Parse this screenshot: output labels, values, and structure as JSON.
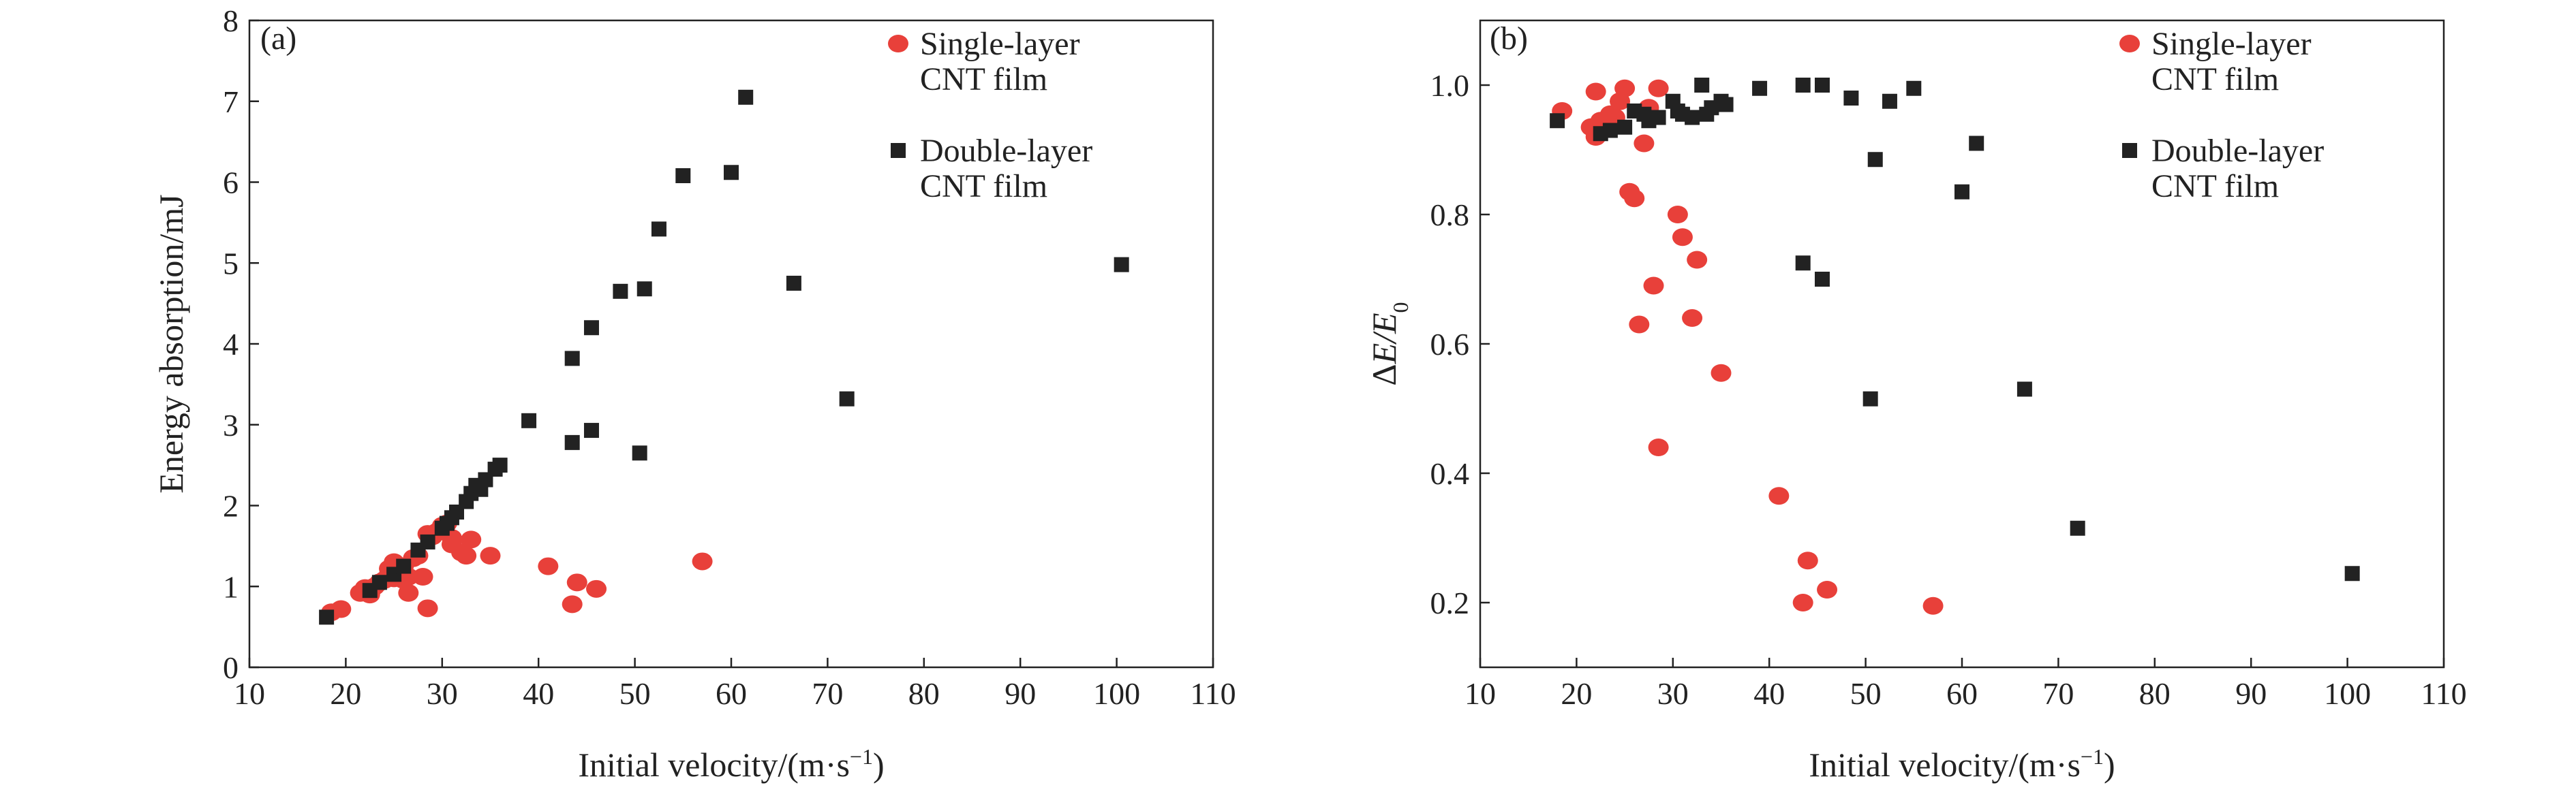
{
  "chart_data": [
    {
      "type": "scatter",
      "panel_label": "(a)",
      "xlabel": "Initial velocity/(m·s",
      "xlabel_sup": "−1",
      "xlabel_close": ")",
      "ylabel": "Energy absorption/mJ",
      "xlim": [
        10,
        110
      ],
      "ylim": [
        0,
        8
      ],
      "xticks": [
        10,
        20,
        30,
        40,
        50,
        60,
        70,
        80,
        90,
        100,
        110
      ],
      "yticks": [
        0,
        1,
        2,
        3,
        4,
        5,
        6,
        7,
        8
      ],
      "grid": false,
      "legend_position": "top-right",
      "series": [
        {
          "name": "Single-layer CNT film",
          "legend_lines": [
            "Single-layer",
            "CNT film"
          ],
          "marker": "circle",
          "color": "#e8403a",
          "points": [
            [
              18.5,
              0.68
            ],
            [
              19.5,
              0.72
            ],
            [
              21.5,
              0.92
            ],
            [
              22,
              0.98
            ],
            [
              22.5,
              0.9
            ],
            [
              23,
              1.0
            ],
            [
              23.5,
              1.05
            ],
            [
              24,
              1.08
            ],
            [
              24.5,
              1.15
            ],
            [
              24.5,
              1.22
            ],
            [
              25,
              1.1
            ],
            [
              25,
              1.3
            ],
            [
              25.5,
              1.18
            ],
            [
              26,
              1.25
            ],
            [
              26,
              1.08
            ],
            [
              26.5,
              1.12
            ],
            [
              26.5,
              0.92
            ],
            [
              27,
              1.35
            ],
            [
              27.5,
              1.38
            ],
            [
              28,
              1.12
            ],
            [
              28.5,
              0.73
            ],
            [
              28.5,
              1.65
            ],
            [
              29,
              1.62
            ],
            [
              29.5,
              1.68
            ],
            [
              30,
              1.75
            ],
            [
              30.5,
              1.78
            ],
            [
              31,
              1.6
            ],
            [
              31,
              1.52
            ],
            [
              32,
              1.42
            ],
            [
              32.5,
              1.38
            ],
            [
              33,
              1.58
            ],
            [
              35,
              1.38
            ],
            [
              41,
              1.25
            ],
            [
              43.5,
              0.78
            ],
            [
              44,
              1.05
            ],
            [
              46,
              0.97
            ],
            [
              57,
              1.31
            ]
          ]
        },
        {
          "name": "Double-layer CNT film",
          "legend_lines": [
            "Double-layer",
            "CNT film"
          ],
          "marker": "square",
          "color": "#222222",
          "points": [
            [
              18,
              0.62
            ],
            [
              22.5,
              0.95
            ],
            [
              23.5,
              1.05
            ],
            [
              25,
              1.15
            ],
            [
              26,
              1.25
            ],
            [
              27.5,
              1.45
            ],
            [
              28.5,
              1.55
            ],
            [
              30,
              1.72
            ],
            [
              30.5,
              1.78
            ],
            [
              31,
              1.85
            ],
            [
              31.5,
              1.92
            ],
            [
              32.5,
              2.05
            ],
            [
              33,
              2.15
            ],
            [
              33.5,
              2.25
            ],
            [
              34,
              2.2
            ],
            [
              34.5,
              2.32
            ],
            [
              35.5,
              2.45
            ],
            [
              36,
              2.5
            ],
            [
              39,
              3.05
            ],
            [
              43.5,
              2.78
            ],
            [
              43.5,
              3.82
            ],
            [
              45.5,
              2.93
            ],
            [
              45.5,
              4.2
            ],
            [
              48.5,
              4.65
            ],
            [
              50.5,
              2.65
            ],
            [
              51,
              4.68
            ],
            [
              52.5,
              5.42
            ],
            [
              55,
              6.08
            ],
            [
              60,
              6.12
            ],
            [
              61.5,
              7.05
            ],
            [
              66.5,
              4.75
            ],
            [
              72,
              3.32
            ],
            [
              100.5,
              4.98
            ]
          ]
        }
      ]
    },
    {
      "type": "scatter",
      "panel_label": "(b)",
      "xlabel": "Initial velocity/(m·s",
      "xlabel_sup": "−1",
      "xlabel_close": ")",
      "ylabel_prefix": "Δ",
      "ylabel_main": "E/E",
      "ylabel_sub": "0",
      "xlim": [
        10,
        110
      ],
      "ylim": [
        0.1,
        1.1
      ],
      "xticks": [
        10,
        20,
        30,
        40,
        50,
        60,
        70,
        80,
        90,
        100,
        110
      ],
      "yticks": [
        0.2,
        0.4,
        0.6,
        0.8,
        1.0
      ],
      "ytick_labels": [
        "0.2",
        "0.4",
        "0.6",
        "0.8",
        "1.0"
      ],
      "grid": false,
      "legend_position": "top-right",
      "series": [
        {
          "name": "Single-layer CNT film",
          "legend_lines": [
            "Single-layer",
            "CNT film"
          ],
          "marker": "circle",
          "color": "#e8403a",
          "points": [
            [
              18.5,
              0.96
            ],
            [
              21.5,
              0.935
            ],
            [
              22,
              0.99
            ],
            [
              22,
              0.92
            ],
            [
              22.5,
              0.945
            ],
            [
              23,
              0.94
            ],
            [
              23.5,
              0.955
            ],
            [
              24,
              0.95
            ],
            [
              24.5,
              0.975
            ],
            [
              25,
              0.995
            ],
            [
              25.5,
              0.835
            ],
            [
              26,
              0.825
            ],
            [
              26.5,
              0.63
            ],
            [
              27,
              0.91
            ],
            [
              27.5,
              0.965
            ],
            [
              28,
              0.69
            ],
            [
              28.5,
              0.995
            ],
            [
              28.5,
              0.44
            ],
            [
              30.5,
              0.8
            ],
            [
              31,
              0.765
            ],
            [
              32,
              0.64
            ],
            [
              32.5,
              0.73
            ],
            [
              35,
              0.555
            ],
            [
              41,
              0.365
            ],
            [
              43.5,
              0.2
            ],
            [
              44,
              0.265
            ],
            [
              46,
              0.22
            ],
            [
              57,
              0.195
            ]
          ]
        },
        {
          "name": "Double-layer CNT film",
          "legend_lines": [
            "Double-layer",
            "CNT film"
          ],
          "marker": "square",
          "color": "#222222",
          "points": [
            [
              18,
              0.945
            ],
            [
              22.5,
              0.925
            ],
            [
              23.5,
              0.93
            ],
            [
              25,
              0.935
            ],
            [
              26,
              0.96
            ],
            [
              27,
              0.955
            ],
            [
              27.5,
              0.945
            ],
            [
              28.5,
              0.95
            ],
            [
              30,
              0.975
            ],
            [
              30.5,
              0.96
            ],
            [
              31,
              0.955
            ],
            [
              32,
              0.95
            ],
            [
              33,
              1.0
            ],
            [
              33.5,
              0.955
            ],
            [
              34,
              0.965
            ],
            [
              35,
              0.975
            ],
            [
              35.5,
              0.97
            ],
            [
              39,
              0.995
            ],
            [
              43.5,
              0.725
            ],
            [
              43.5,
              1.0
            ],
            [
              45.5,
              0.7
            ],
            [
              45.5,
              1.0
            ],
            [
              48.5,
              0.98
            ],
            [
              50.5,
              0.515
            ],
            [
              51,
              0.885
            ],
            [
              52.5,
              0.975
            ],
            [
              55,
              0.995
            ],
            [
              60,
              0.835
            ],
            [
              61.5,
              0.91
            ],
            [
              66.5,
              0.53
            ],
            [
              72,
              0.315
            ],
            [
              100.5,
              0.245
            ]
          ]
        }
      ]
    }
  ]
}
